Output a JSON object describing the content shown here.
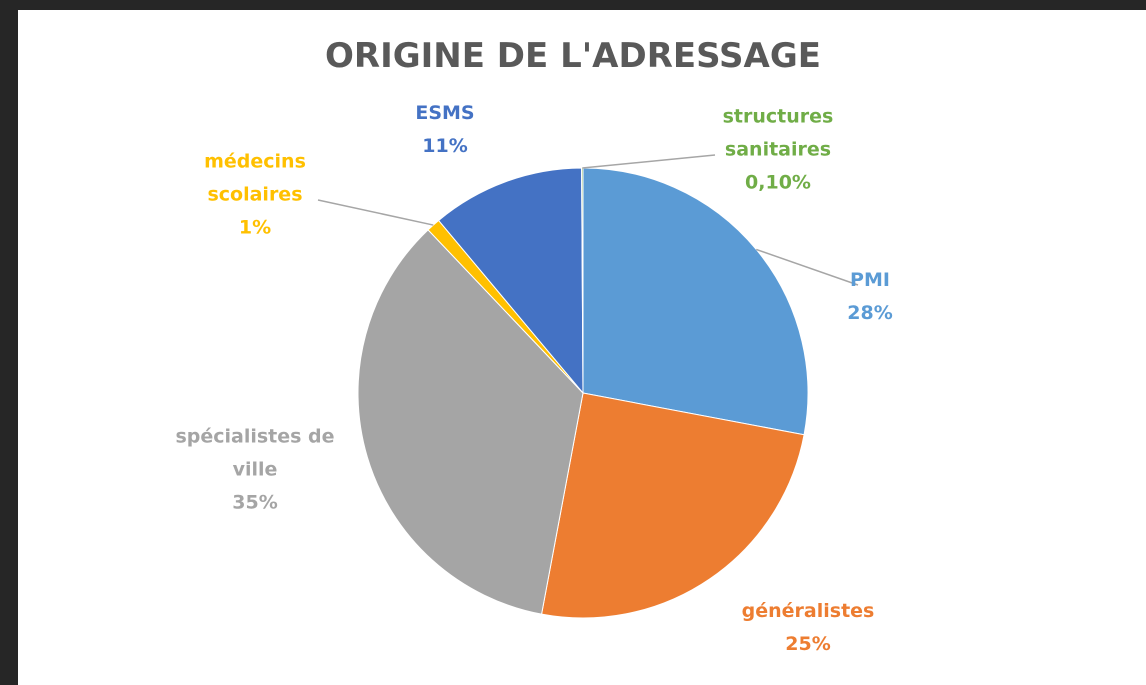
{
  "chart_data": {
    "type": "pie",
    "title": "ORIGINE DE L'ADRESSAGE",
    "categories": [
      "PMI",
      "généralistes",
      "spécialistes de ville",
      "médecins scolaires",
      "ESMS",
      "structures sanitaires"
    ],
    "values": [
      28,
      25,
      35,
      1,
      11,
      0.1
    ],
    "value_labels": [
      "28%",
      "25%",
      "35%",
      "1%",
      "11%",
      "0,10%"
    ],
    "colors": [
      "#5b9bd5",
      "#ed7d31",
      "#a5a5a5",
      "#ffc000",
      "#4472c4",
      "#70ad47"
    ]
  }
}
